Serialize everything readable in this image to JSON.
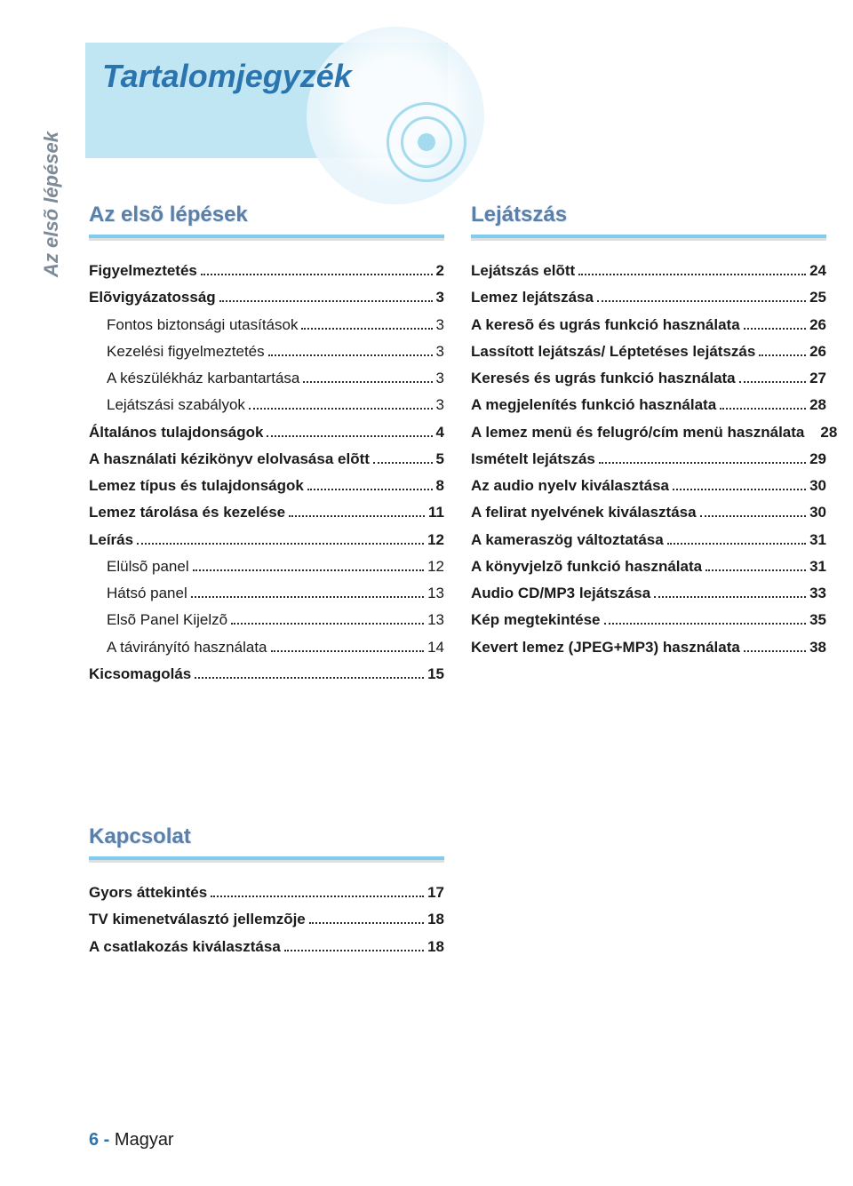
{
  "colors": {
    "header_band": "#c0e6f4",
    "title_color": "#2a75b0",
    "side_tab_text": "#7d8a97",
    "section_heading": "#5a7fa8",
    "heading_shadow": "#d9e4ee",
    "underline": "#7fccee",
    "underline_shadow": "#dcdedf",
    "body_text": "#1a1a1a",
    "disc_ring": "#a4dbee",
    "background": "#ffffff"
  },
  "typography": {
    "title_fontsize": 36,
    "section_heading_fontsize": 24,
    "toc_fontsize": 17,
    "side_tab_fontsize": 22,
    "footer_fontsize": 20
  },
  "page_title": "Tartalomjegyzék",
  "side_tab": "Az elsõ lépések",
  "sections": {
    "left": {
      "heading": "Az elsõ lépések",
      "items": [
        {
          "label": "Figyelmeztetés",
          "page": "2",
          "bold": true,
          "indent": false,
          "dots": true
        },
        {
          "label": "Elõvigyázatosság",
          "page": "3",
          "bold": true,
          "indent": false,
          "dots": true
        },
        {
          "label": "Fontos biztonsági utasítások",
          "page": "3",
          "bold": false,
          "indent": true,
          "dots": true
        },
        {
          "label": "Kezelési figyelmeztetés",
          "page": "3",
          "bold": false,
          "indent": true,
          "dots": true
        },
        {
          "label": "A készülékház karbantartása",
          "page": "3",
          "bold": false,
          "indent": true,
          "dots": true
        },
        {
          "label": "Lejátszási szabályok",
          "page": "3",
          "bold": false,
          "indent": true,
          "dots": true
        },
        {
          "label": "Általános tulajdonságok",
          "page": "4",
          "bold": true,
          "indent": false,
          "dots": true
        },
        {
          "label": "A használati kézikönyv elolvasása elõtt",
          "page": "5",
          "bold": true,
          "indent": false,
          "dots": true
        },
        {
          "label": "Lemez típus és tulajdonságok",
          "page": "8",
          "bold": true,
          "indent": false,
          "dots": true
        },
        {
          "label": "Lemez tárolása és kezelése",
          "page": "11",
          "bold": true,
          "indent": false,
          "dots": true
        },
        {
          "label": "Leírás",
          "page": "12",
          "bold": true,
          "indent": false,
          "dots": true
        },
        {
          "label": "Elülsõ panel",
          "page": "12",
          "bold": false,
          "indent": true,
          "dots": true
        },
        {
          "label": "Hátsó panel",
          "page": "13",
          "bold": false,
          "indent": true,
          "dots": true
        },
        {
          "label": "Elsõ Panel Kijelzõ",
          "page": "13",
          "bold": false,
          "indent": true,
          "dots": true
        },
        {
          "label": "A távirányító használata",
          "page": "14",
          "bold": false,
          "indent": true,
          "dots": true
        },
        {
          "label": "Kicsomagolás",
          "page": "15",
          "bold": true,
          "indent": false,
          "dots": true
        }
      ]
    },
    "right": {
      "heading": "Lejátszás",
      "items": [
        {
          "label": "Lejátszás elõtt",
          "page": "24",
          "bold": true,
          "indent": false,
          "dots": true
        },
        {
          "label": "Lemez lejátszása",
          "page": "25",
          "bold": true,
          "indent": false,
          "dots": true
        },
        {
          "label": "A keresõ és ugrás funkció használata",
          "page": "26",
          "bold": true,
          "indent": false,
          "dots": true
        },
        {
          "label": "Lassított lejátszás/ Léptetéses lejátszás",
          "page": "26",
          "bold": true,
          "indent": false,
          "dots": true
        },
        {
          "label": "Keresés és ugrás funkció használata",
          "page": "27",
          "bold": true,
          "indent": false,
          "dots": true
        },
        {
          "label": "A megjelenítés funkció használata",
          "page": "28",
          "bold": true,
          "indent": false,
          "dots": true
        },
        {
          "label": "A lemez menü és felugró/cím menü használata",
          "page": "28",
          "bold": true,
          "indent": false,
          "dots": false
        },
        {
          "label": "Ismételt lejátszás",
          "page": "29",
          "bold": true,
          "indent": false,
          "dots": true
        },
        {
          "label": "Az audio nyelv kiválasztása",
          "page": "30",
          "bold": true,
          "indent": false,
          "dots": true
        },
        {
          "label": "A felirat nyelvének kiválasztása",
          "page": "30",
          "bold": true,
          "indent": false,
          "dots": true
        },
        {
          "label": "A kameraszög változtatása",
          "page": "31",
          "bold": true,
          "indent": false,
          "dots": true
        },
        {
          "label": "A könyvjelzõ funkció használata",
          "page": "31",
          "bold": true,
          "indent": false,
          "dots": true
        },
        {
          "label": "Audio CD/MP3 lejátszása",
          "page": "33",
          "bold": true,
          "indent": false,
          "dots": true
        },
        {
          "label": "Kép megtekintése",
          "page": "35",
          "bold": true,
          "indent": false,
          "dots": true
        },
        {
          "label": "Kevert lemez (JPEG+MP3) használata",
          "page": "38",
          "bold": true,
          "indent": false,
          "dots": true
        }
      ]
    },
    "bottom": {
      "heading": "Kapcsolat",
      "items": [
        {
          "label": "Gyors áttekintés",
          "page": "17",
          "bold": true,
          "indent": false,
          "dots": true
        },
        {
          "label": "TV kimenetválasztó jellemzõje",
          "page": "18",
          "bold": true,
          "indent": false,
          "dots": true
        },
        {
          "label": "A csatlakozás kiválasztása",
          "page": "18",
          "bold": true,
          "indent": false,
          "dots": true
        }
      ]
    }
  },
  "footer": {
    "page_number": "6",
    "separator": " - ",
    "language": "Magyar"
  }
}
